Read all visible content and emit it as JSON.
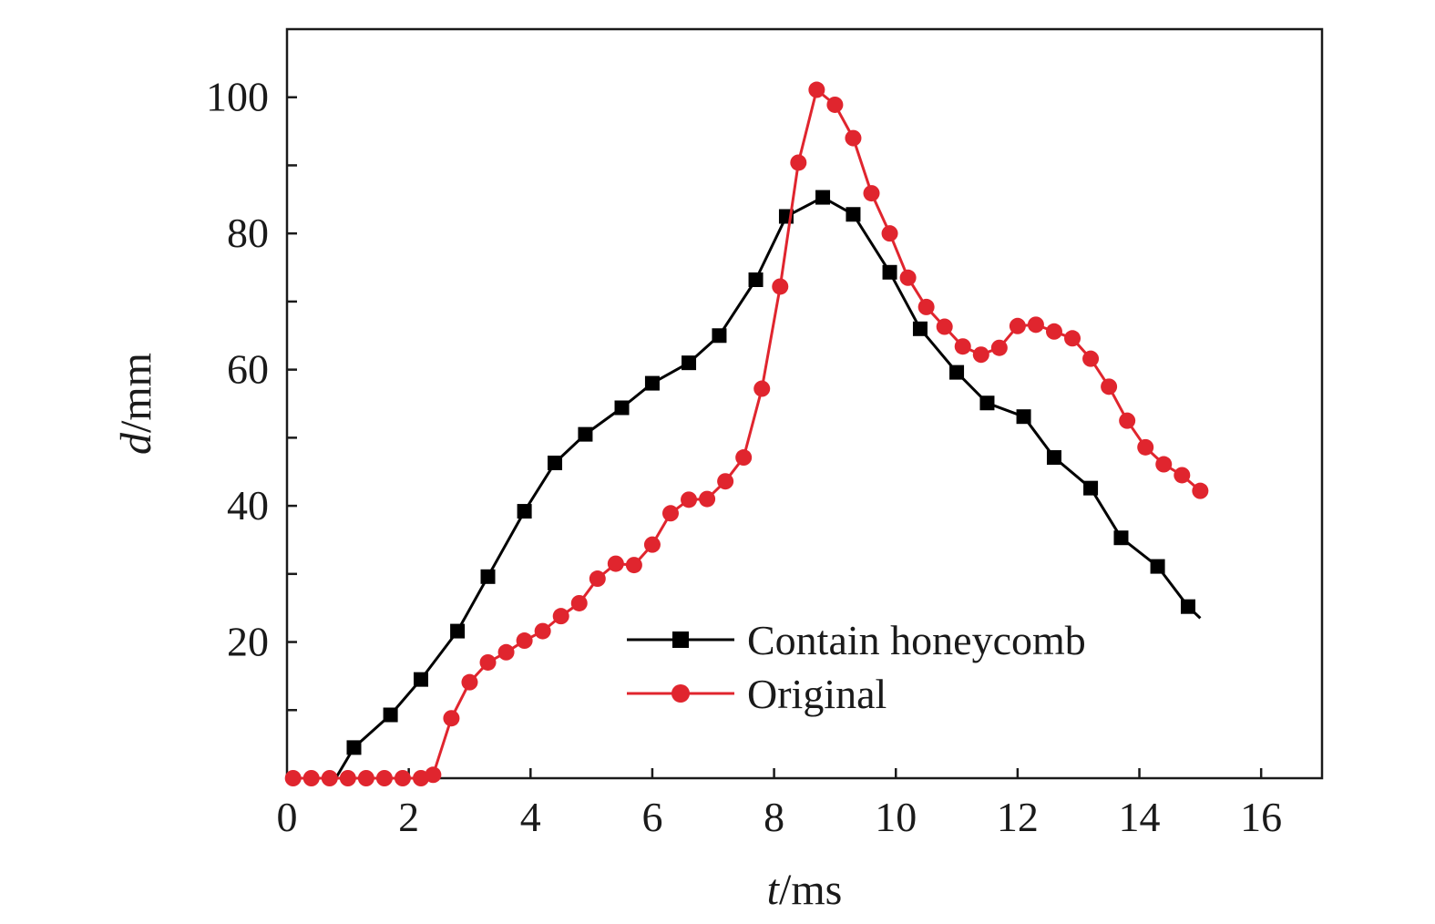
{
  "chart_data": {
    "type": "line",
    "x_axis": {
      "label_var": "t",
      "label_unit": "/ms",
      "range": [
        0,
        17
      ],
      "ticks": [
        0,
        2,
        4,
        6,
        8,
        10,
        12,
        14,
        16
      ],
      "tick_labels": [
        "0",
        "2",
        "4",
        "6",
        "8",
        "10",
        "12",
        "14",
        "16"
      ]
    },
    "y_axis": {
      "label_var": "d",
      "label_unit": "/mm",
      "range": [
        0,
        110
      ],
      "major_ticks": [
        20,
        40,
        60,
        80,
        100
      ],
      "tick_labels": [
        "20",
        "40",
        "60",
        "80",
        "100"
      ],
      "minor_ticks": [
        10,
        30,
        50,
        70,
        90
      ]
    },
    "grid": false,
    "legend_position": "bottom-right",
    "series": [
      {
        "name": "Contain honeycomb",
        "color": "#000000",
        "marker": "square",
        "x": [
          0.8,
          1.1,
          1.7,
          2.2,
          2.8,
          3.3,
          3.9,
          4.4,
          4.9,
          5.5,
          6.0,
          6.6,
          7.1,
          7.7,
          8.2,
          8.8,
          9.3,
          9.9,
          10.4,
          11.0,
          11.5,
          12.1,
          12.6,
          13.2,
          13.7,
          14.3,
          14.8,
          15.0
        ],
        "y": [
          0,
          4.5,
          9.3,
          14.5,
          21.6,
          29.6,
          39.2,
          46.3,
          50.5,
          54.4,
          58.0,
          61.0,
          65.0,
          73.2,
          82.5,
          85.3,
          82.8,
          74.3,
          66.0,
          59.6,
          55.1,
          53.1,
          47.1,
          42.6,
          35.3,
          31.1,
          25.2,
          23.5
        ]
      },
      {
        "name": "Original",
        "color": "#e0252e",
        "marker": "circle",
        "x": [
          0.1,
          0.4,
          0.7,
          1.0,
          1.3,
          1.6,
          1.9,
          2.2,
          2.4,
          2.7,
          3.0,
          3.3,
          3.6,
          3.9,
          4.2,
          4.5,
          4.8,
          5.1,
          5.4,
          5.7,
          6.0,
          6.3,
          6.6,
          6.9,
          7.2,
          7.5,
          7.8,
          8.1,
          8.4,
          8.7,
          9.0,
          9.3,
          9.6,
          9.9,
          10.2,
          10.5,
          10.8,
          11.1,
          11.4,
          11.7,
          12.0,
          12.3,
          12.6,
          12.9,
          13.2,
          13.5,
          13.8,
          14.1,
          14.4,
          14.7,
          15.0
        ],
        "y": [
          0,
          0,
          0,
          0,
          0,
          0,
          0,
          0,
          0.5,
          8.8,
          14.1,
          17.0,
          18.5,
          20.2,
          21.6,
          23.8,
          25.7,
          29.3,
          31.5,
          31.3,
          34.3,
          38.9,
          40.9,
          41.0,
          43.6,
          47.1,
          57.2,
          72.2,
          90.4,
          101.1,
          98.9,
          94.0,
          85.9,
          80.0,
          73.5,
          69.2,
          66.3,
          63.4,
          62.2,
          63.2,
          66.4,
          66.6,
          65.6,
          64.6,
          61.6,
          57.5,
          52.5,
          48.6,
          46.1,
          44.5,
          42.2
        ]
      }
    ]
  }
}
